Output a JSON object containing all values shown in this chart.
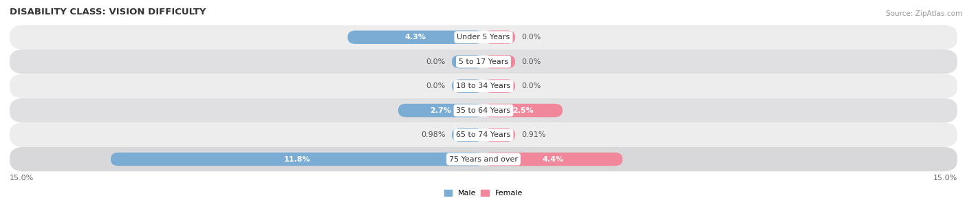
{
  "title": "DISABILITY CLASS: VISION DIFFICULTY",
  "source": "Source: ZipAtlas.com",
  "categories": [
    "Under 5 Years",
    "5 to 17 Years",
    "18 to 34 Years",
    "35 to 64 Years",
    "65 to 74 Years",
    "75 Years and over"
  ],
  "male_values": [
    4.3,
    0.0,
    0.0,
    2.7,
    0.98,
    11.8
  ],
  "female_values": [
    0.0,
    0.0,
    0.0,
    2.5,
    0.91,
    4.4
  ],
  "male_labels": [
    "4.3%",
    "0.0%",
    "0.0%",
    "2.7%",
    "0.98%",
    "11.8%"
  ],
  "female_labels": [
    "0.0%",
    "0.0%",
    "0.0%",
    "2.5%",
    "0.91%",
    "4.4%"
  ],
  "male_color": "#7badd4",
  "female_color": "#f0879a",
  "male_label": "Male",
  "female_label": "Female",
  "xlim": 15.0,
  "xlim_label_left": "15.0%",
  "xlim_label_right": "15.0%",
  "bar_height": 0.55,
  "row_colors": [
    "#ededee",
    "#e0e0e2",
    "#ededee",
    "#e0e0e2",
    "#ededee",
    "#d8d8da"
  ],
  "title_fontsize": 9.5,
  "label_fontsize": 8,
  "cat_fontsize": 8,
  "tick_fontsize": 8,
  "source_fontsize": 7.5
}
